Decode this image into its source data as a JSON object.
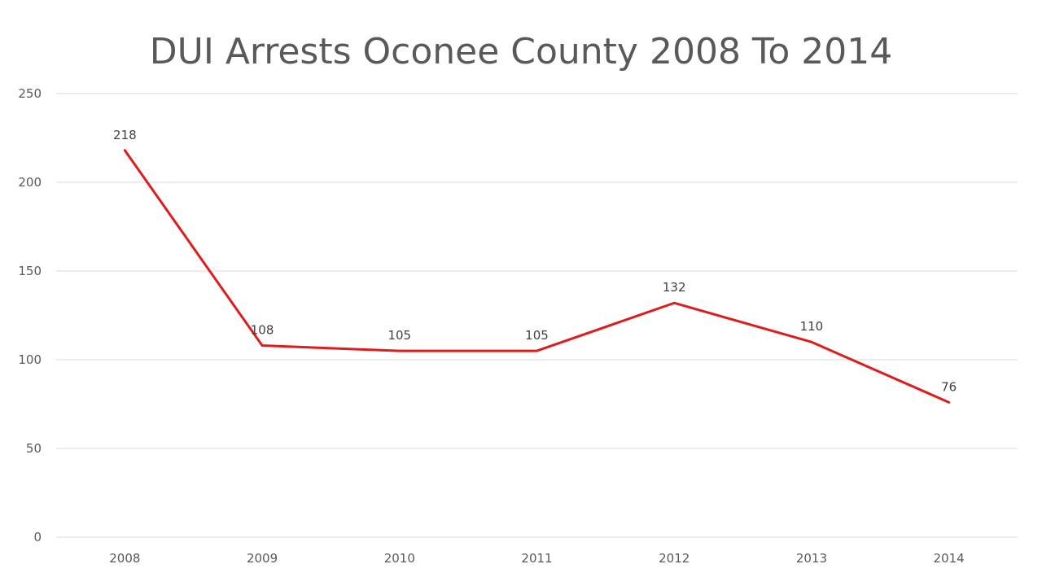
{
  "chart_data": {
    "type": "line",
    "title": "DUI Arrests Oconee County 2008 To 2014",
    "categories": [
      "2008",
      "2009",
      "2010",
      "2011",
      "2012",
      "2013",
      "2014"
    ],
    "series": [
      {
        "values": [
          218,
          108,
          105,
          105,
          132,
          110,
          76
        ],
        "color": "#e01b1b"
      }
    ],
    "data_labels": [
      "218",
      "108",
      "105",
      "105",
      "132",
      "110",
      "76"
    ],
    "yticks": [
      0,
      50,
      100,
      150,
      200,
      250
    ],
    "ylim": [
      0,
      250
    ],
    "grid": true,
    "legend": "none"
  }
}
